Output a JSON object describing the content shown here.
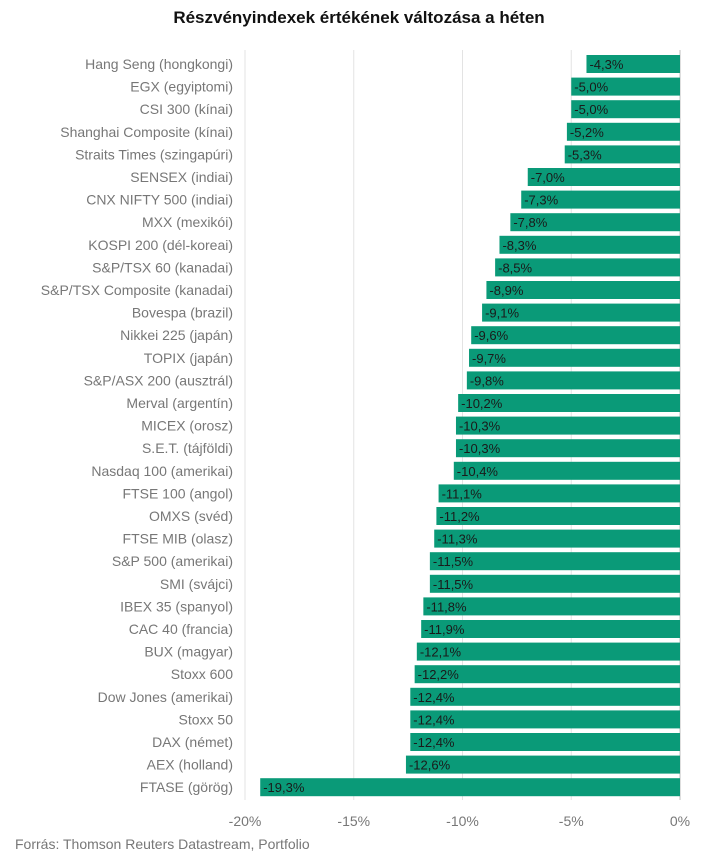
{
  "chart_data": {
    "type": "bar",
    "orientation": "horizontal",
    "title": "Részvényindexek értékének változása a héten",
    "xlabel": "",
    "ylabel": "",
    "xlim": [
      -20,
      0
    ],
    "ticks": [
      -20,
      -15,
      -10,
      -5,
      0
    ],
    "tick_labels": [
      "-20%",
      "-15%",
      "-10%",
      "-5%",
      "0%"
    ],
    "grid": "vertical",
    "bar_color": "#0a9a78",
    "categories": [
      "Hang Seng (hongkongi)",
      "EGX (egyiptomi)",
      "CSI 300 (kínai)",
      "Shanghai Composite (kínai)",
      "Straits Times (szingapúri)",
      "SENSEX (indiai)",
      "CNX NIFTY 500 (indiai)",
      "MXX (mexikói)",
      "KOSPI 200 (dél-koreai)",
      "S&P/TSX 60 (kanadai)",
      "S&P/TSX Composite (kanadai)",
      "Bovespa (brazil)",
      "Nikkei 225 (japán)",
      "TOPIX (japán)",
      "S&P/ASX 200 (ausztrál)",
      "Merval (argentín)",
      "MICEX (orosz)",
      "S.E.T. (tájföldi)",
      "Nasdaq 100 (amerikai)",
      "FTSE 100 (angol)",
      "OMXS (svéd)",
      "FTSE MIB (olasz)",
      "S&P 500 (amerikai)",
      "SMI (svájci)",
      "IBEX 35 (spanyol)",
      "CAC 40 (francia)",
      "BUX (magyar)",
      "Stoxx 600",
      "Dow Jones (amerikai)",
      "Stoxx 50",
      "DAX (német)",
      "AEX (holland)",
      "FTASE (görög)"
    ],
    "values": [
      -4.3,
      -5.0,
      -5.0,
      -5.2,
      -5.3,
      -7.0,
      -7.3,
      -7.8,
      -8.3,
      -8.5,
      -8.9,
      -9.1,
      -9.6,
      -9.7,
      -9.8,
      -10.2,
      -10.3,
      -10.3,
      -10.4,
      -11.1,
      -11.2,
      -11.3,
      -11.5,
      -11.5,
      -11.8,
      -11.9,
      -12.1,
      -12.2,
      -12.4,
      -12.4,
      -12.4,
      -12.6,
      -19.3
    ],
    "value_labels": [
      "-4,3%",
      "-5,0%",
      "-5,0%",
      "-5,2%",
      "-5,3%",
      "-7,0%",
      "-7,3%",
      "-7,8%",
      "-8,3%",
      "-8,5%",
      "-8,9%",
      "-9,1%",
      "-9,6%",
      "-9,7%",
      "-9,8%",
      "-10,2%",
      "-10,3%",
      "-10,3%",
      "-10,4%",
      "-11,1%",
      "-11,2%",
      "-11,3%",
      "-11,5%",
      "-11,5%",
      "-11,8%",
      "-11,9%",
      "-12,1%",
      "-12,2%",
      "-12,4%",
      "-12,4%",
      "-12,4%",
      "-12,6%",
      "-19,3%"
    ]
  },
  "source": "Forrás: Thomson Reuters Datastream, Portfolio"
}
